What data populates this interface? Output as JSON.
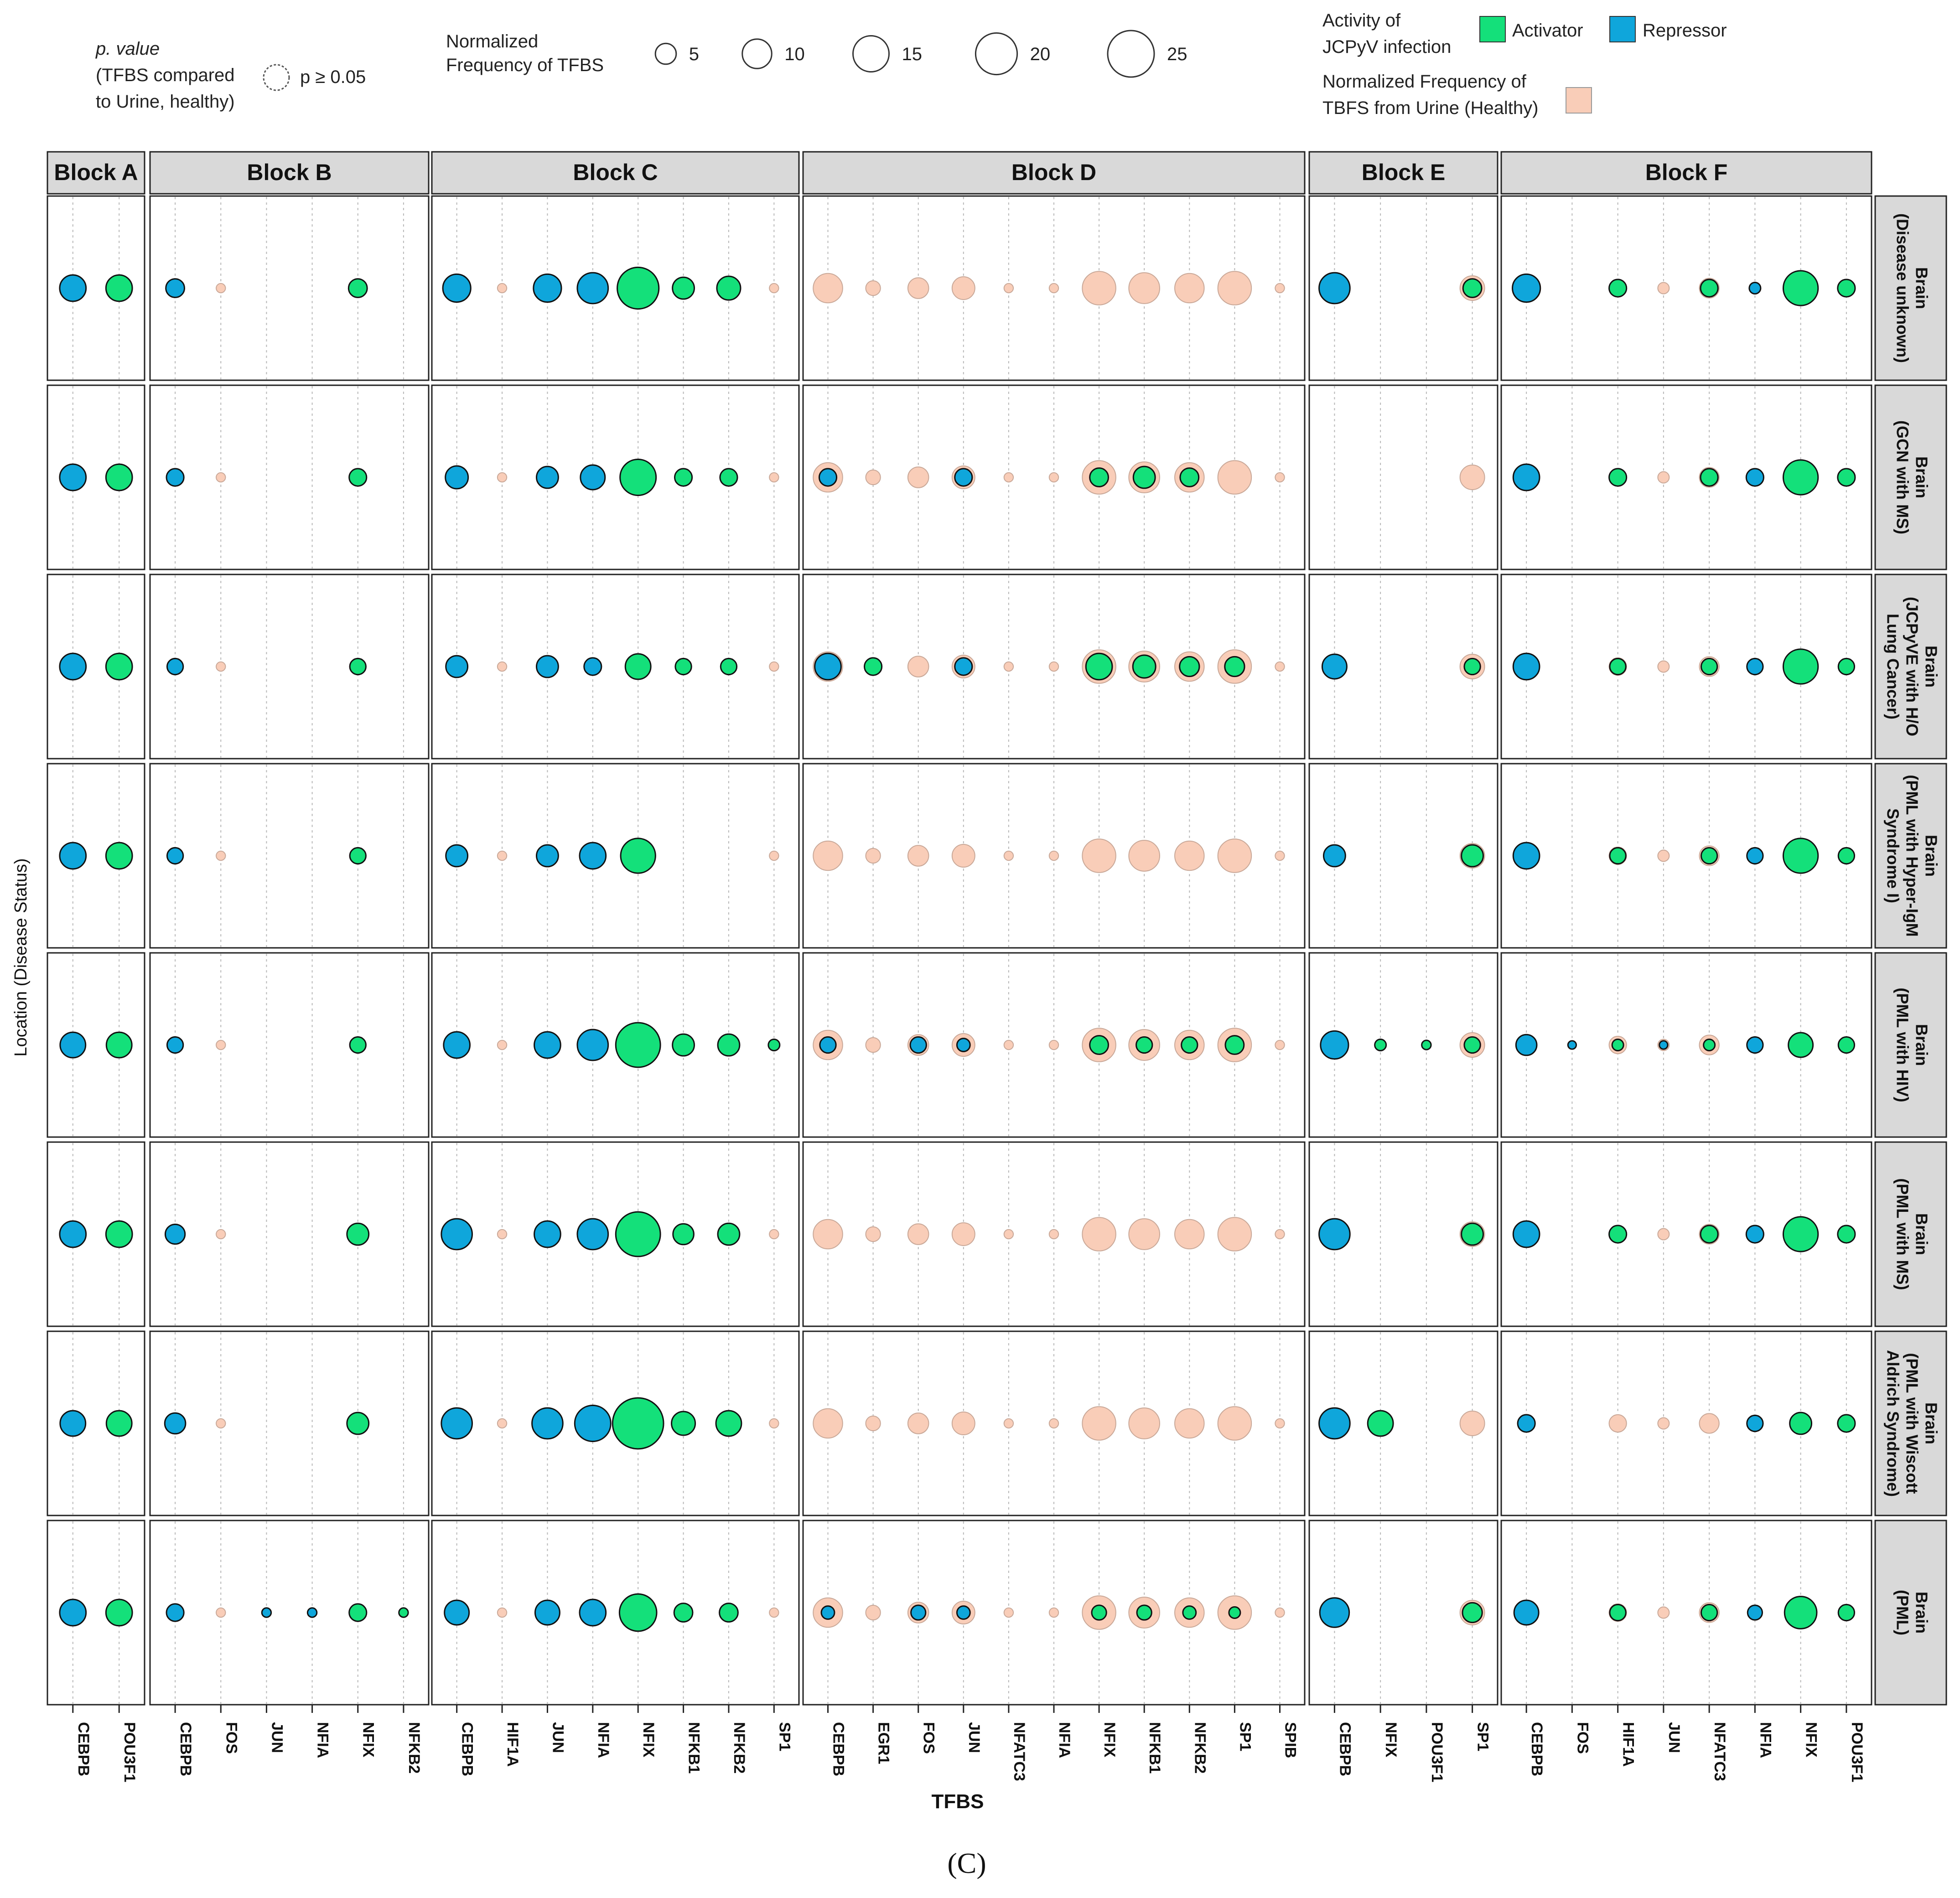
{
  "colors": {
    "activator": "#14e07a",
    "repressor": "#0fa6db",
    "urine": "#f9cdb8",
    "strip": "#d9d9d9",
    "grid": "#b8b8b8"
  },
  "legend": {
    "pvalue_title": "p. value",
    "pvalue_sub1": "(TFBS compared",
    "pvalue_sub2": "to Urine, healthy)",
    "pvalue_label": "p ≥ 0.05",
    "size_title1": "Normalized",
    "size_title2": "Frequency of TFBS",
    "size_values": [
      5,
      10,
      15,
      20,
      25
    ],
    "activity_title1": "Activity of",
    "activity_title2": "JCPyV infection",
    "activator_label": "Activator",
    "repressor_label": "Repressor",
    "urine_title1": "Normalized Frequency of",
    "urine_title2": "TBFS from Urine (Healthy)"
  },
  "chart_data": {
    "type": "scatter",
    "subtype": "faceted bubble chart",
    "xlabel": "TFBS",
    "ylabel": "Location (Disease Status)",
    "caption": "(C)",
    "blocks": [
      {
        "name": "Block A",
        "tfbs": [
          "CEBPB",
          "POU3F1"
        ]
      },
      {
        "name": "Block B",
        "tfbs": [
          "CEBPB",
          "FOS",
          "JUN",
          "NFIA",
          "NFIX",
          "NFKB2"
        ]
      },
      {
        "name": "Block C",
        "tfbs": [
          "CEBPB",
          "HIF1A",
          "JUN",
          "NFIA",
          "NFIX",
          "NFKB1",
          "NFKB2",
          "SP1"
        ]
      },
      {
        "name": "Block D",
        "tfbs": [
          "CEBPB",
          "EGR1",
          "FOS",
          "JUN",
          "NFATC3",
          "NFIA",
          "NFIX",
          "NFKB1",
          "NFKB2",
          "SP1",
          "SPIB"
        ]
      },
      {
        "name": "Block E",
        "tfbs": [
          "CEBPB",
          "NFIX",
          "POU3F1",
          "SP1"
        ]
      },
      {
        "name": "Block F",
        "tfbs": [
          "CEBPB",
          "FOS",
          "HIF1A",
          "JUN",
          "NFATC3",
          "NFIA",
          "NFIX",
          "POU3F1"
        ]
      }
    ],
    "rows": [
      {
        "label": [
          "Brain",
          "(Disease unknown)"
        ]
      },
      {
        "label": [
          "Brain",
          "(GCN with MS)"
        ]
      },
      {
        "label": [
          "Brain",
          "(JCPyVE with H/O",
          "Lung Cancer)"
        ]
      },
      {
        "label": [
          "Brain",
          "(PML with Hyper-IgM",
          "Syndrome I)"
        ]
      },
      {
        "label": [
          "Brain",
          "(PML with HIV)"
        ]
      },
      {
        "label": [
          "Brain",
          "(PML with MS)"
        ]
      },
      {
        "label": [
          "Brain",
          "(PML with Wiscott",
          "Aldrich Syndrome)"
        ]
      },
      {
        "label": [
          "Brain",
          "(PML)"
        ]
      }
    ],
    "urine_values": {
      "Block A": [
        0,
        0
      ],
      "Block B": [
        0,
        1,
        0,
        0,
        0,
        0
      ],
      "Block C": [
        0,
        1,
        0,
        0,
        0,
        0,
        0,
        1
      ],
      "Block D": [
        10,
        2.5,
        5,
        6,
        1,
        1,
        13,
        11,
        10,
        13,
        1
      ],
      "Block E": [
        0,
        0,
        0,
        7
      ],
      "Block F": [
        0,
        0,
        3.5,
        1.5,
        4.5,
        0,
        0,
        0
      ]
    },
    "activity": {
      "Block A": [
        "R",
        "A"
      ],
      "Block B": [
        "R",
        "R",
        "R",
        "R",
        "A",
        "A"
      ],
      "Block C": [
        "R",
        "R",
        "R",
        "R",
        "A",
        "A",
        "A",
        "A"
      ],
      "Block D": [
        "R",
        "A",
        "R",
        "R",
        "A",
        "R",
        "A",
        "A",
        "A",
        "A",
        "A"
      ],
      "Block E": [
        "R",
        "A",
        "A",
        "A"
      ],
      "Block F": [
        "R",
        "R",
        "A",
        "R",
        "A",
        "R",
        "A",
        "A"
      ]
    },
    "values": [
      {
        "Block A": [
          8,
          8
        ],
        "Block B": [
          4,
          0,
          0,
          0,
          4,
          0
        ],
        "Block C": [
          9,
          0,
          9,
          11,
          20,
          5.5,
          6.5,
          0
        ],
        "Block D": [
          0,
          0,
          0,
          0,
          0,
          0,
          0,
          0,
          0,
          0,
          0
        ],
        "Block E": [
          11,
          0,
          0,
          4
        ],
        "Block F": [
          9,
          0,
          3.5,
          0,
          3.5,
          1.5,
          14,
          3.5
        ]
      },
      {
        "Block A": [
          8,
          8
        ],
        "Block B": [
          3.5,
          0,
          0,
          0,
          3.5,
          0
        ],
        "Block C": [
          6,
          0,
          5.5,
          7,
          15,
          3.5,
          3.5,
          0
        ],
        "Block D": [
          3.5,
          0,
          0,
          3.5,
          0,
          0,
          4,
          5.5,
          4,
          0,
          0
        ],
        "Block E": [
          0,
          0,
          0,
          0
        ],
        "Block F": [
          8,
          0,
          3.5,
          0,
          3.5,
          3.5,
          14,
          3.5
        ]
      },
      {
        "Block A": [
          8,
          8
        ],
        "Block B": [
          3,
          0,
          0,
          0,
          3,
          0
        ],
        "Block C": [
          5.5,
          0,
          5.5,
          3.5,
          7.5,
          3,
          3,
          0
        ],
        "Block D": [
          8,
          3.5,
          0,
          3.5,
          0,
          0,
          8,
          6,
          4.5,
          4.5,
          0
        ],
        "Block E": [
          7,
          0,
          0,
          3
        ],
        "Block F": [
          8,
          0,
          3,
          0,
          3,
          3,
          14,
          3
        ]
      },
      {
        "Block A": [
          8,
          8
        ],
        "Block B": [
          3,
          0,
          0,
          0,
          3,
          0
        ],
        "Block C": [
          5.5,
          0,
          5.5,
          8,
          14,
          0,
          0,
          0
        ],
        "Block D": [
          0,
          0,
          0,
          0,
          0,
          0,
          0,
          0,
          0,
          0,
          0
        ],
        "Block E": [
          5.5,
          0,
          0,
          5.5
        ],
        "Block F": [
          8,
          0,
          3,
          0,
          3,
          3,
          14,
          3
        ]
      },
      {
        "Block A": [
          7.5,
          7.5
        ],
        "Block B": [
          3,
          0,
          0,
          0,
          3,
          0
        ],
        "Block C": [
          8,
          0,
          8,
          11,
          23,
          5.5,
          5.5,
          1.5
        ],
        "Block D": [
          3,
          0,
          3,
          2,
          0,
          0,
          4,
          3,
          3,
          4,
          0
        ],
        "Block E": [
          9,
          1.5,
          1,
          3
        ],
        "Block F": [
          5,
          0.8,
          1.5,
          0.8,
          1.5,
          3,
          7,
          3
        ]
      },
      {
        "Block A": [
          8,
          8
        ],
        "Block B": [
          4.5,
          0,
          0,
          0,
          5.5,
          0
        ],
        "Block C": [
          11,
          0,
          8,
          11,
          23,
          5,
          5.5,
          0
        ],
        "Block D": [
          0,
          0,
          0,
          0,
          0,
          0,
          0,
          0,
          0,
          0,
          0
        ],
        "Block E": [
          11,
          0,
          0,
          5.5
        ],
        "Block F": [
          8,
          0,
          3.5,
          0,
          3.5,
          3.5,
          14,
          3.5
        ]
      },
      {
        "Block A": [
          7.5,
          7.5
        ],
        "Block B": [
          5,
          0,
          0,
          0,
          5.5,
          0
        ],
        "Block C": [
          11,
          0,
          11,
          15,
          30,
          6.5,
          7.5,
          0
        ],
        "Block D": [
          0,
          0,
          0,
          0,
          0,
          0,
          0,
          0,
          0,
          0,
          0
        ],
        "Block E": [
          11,
          7.5,
          0,
          0
        ],
        "Block F": [
          3.5,
          0,
          0,
          0,
          0,
          3,
          5.5,
          3.5
        ]
      },
      {
        "Block A": [
          8,
          8
        ],
        "Block B": [
          3.5,
          0,
          1,
          1,
          3.5,
          1
        ],
        "Block C": [
          7,
          0,
          7,
          8,
          16,
          4,
          4,
          0
        ],
        "Block D": [
          2,
          0,
          2.5,
          2,
          0,
          0,
          2.5,
          2.5,
          2,
          1.5,
          0
        ],
        "Block E": [
          10,
          0,
          0,
          4.5
        ],
        "Block F": [
          7,
          0,
          3,
          0,
          3,
          2.5,
          12,
          3
        ]
      }
    ]
  }
}
